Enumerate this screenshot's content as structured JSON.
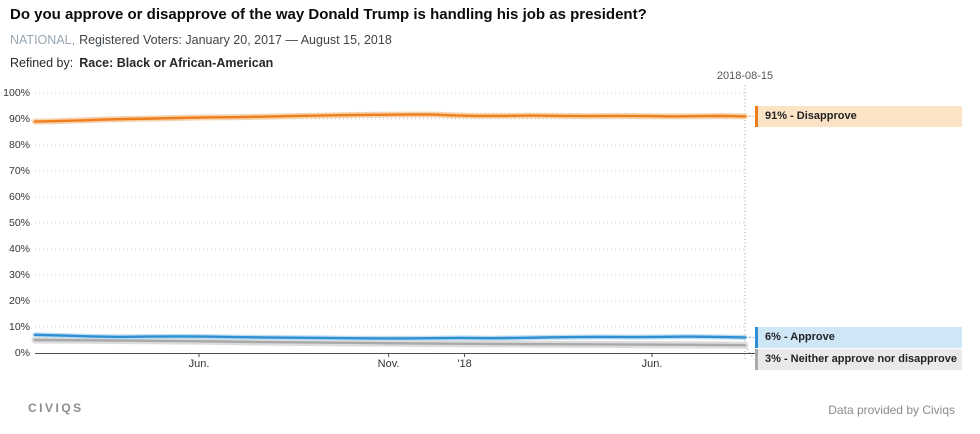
{
  "header": {
    "title": "Do you approve or disapprove of the way Donald Trump is handling his job as president?",
    "scope": "NATIONAL,",
    "subtitle": "Registered Voters: January 20, 2017 — August 15, 2018",
    "refined_label": "Refined by:",
    "refined_value": "Race: Black or African-American"
  },
  "chart_data": {
    "type": "line",
    "title": "Do you approve or disapprove of the way Donald Trump is handling his job as president?",
    "xlabel": "",
    "ylabel": "",
    "ylim": [
      0,
      100
    ],
    "grid": "dotted horizontal",
    "legend_position": "right-end-labels",
    "x_range": {
      "start": "January 20, 2017",
      "end": "August 15, 2018"
    },
    "cursor": {
      "label": "2018-08-15",
      "pos": 1.0
    },
    "y_ticks": [
      {
        "value": 0,
        "label": "0%"
      },
      {
        "value": 10,
        "label": "10%"
      },
      {
        "value": 20,
        "label": "20%"
      },
      {
        "value": 30,
        "label": "30%"
      },
      {
        "value": 40,
        "label": "40%"
      },
      {
        "value": 50,
        "label": "50%"
      },
      {
        "value": 60,
        "label": "60%"
      },
      {
        "value": 70,
        "label": "70%"
      },
      {
        "value": 80,
        "label": "80%"
      },
      {
        "value": 90,
        "label": "90%"
      },
      {
        "value": 100,
        "label": "100%"
      }
    ],
    "x_ticks": [
      {
        "pos": 0.231,
        "label": "Jun."
      },
      {
        "pos": 0.498,
        "label": "Nov."
      },
      {
        "pos": 0.605,
        "label": "'18"
      },
      {
        "pos": 0.869,
        "label": "Jun."
      }
    ],
    "series": [
      {
        "name": "Disapprove",
        "label": "91% - Disapprove",
        "end_value": 91,
        "color": "#ee7e1d",
        "band_color": "#f7d4af",
        "band_width": 6,
        "label_bg": "#fbe3c6",
        "points": [
          [
            0,
            89.0
          ],
          [
            0.03,
            89.2
          ],
          [
            0.07,
            89.5
          ],
          [
            0.1,
            89.8
          ],
          [
            0.13,
            90.0
          ],
          [
            0.17,
            90.2
          ],
          [
            0.2,
            90.4
          ],
          [
            0.24,
            90.6
          ],
          [
            0.28,
            90.7
          ],
          [
            0.32,
            90.9
          ],
          [
            0.36,
            91.1
          ],
          [
            0.4,
            91.3
          ],
          [
            0.44,
            91.5
          ],
          [
            0.48,
            91.6
          ],
          [
            0.52,
            91.7
          ],
          [
            0.56,
            91.7
          ],
          [
            0.59,
            91.4
          ],
          [
            0.62,
            91.2
          ],
          [
            0.66,
            91.2
          ],
          [
            0.7,
            91.3
          ],
          [
            0.74,
            91.2
          ],
          [
            0.78,
            91.1
          ],
          [
            0.82,
            91.2
          ],
          [
            0.86,
            91.1
          ],
          [
            0.9,
            91.0
          ],
          [
            0.94,
            91.1
          ],
          [
            0.97,
            91.2
          ],
          [
            1,
            91.0
          ]
        ]
      },
      {
        "name": "Approve",
        "label": "6% - Approve",
        "end_value": 6,
        "color": "#2e8fd2",
        "band_color": "#bcdcf2",
        "band_width": 5,
        "label_bg": "#cfe6f6",
        "points": [
          [
            0,
            7.0
          ],
          [
            0.04,
            6.7
          ],
          [
            0.08,
            6.4
          ],
          [
            0.12,
            6.2
          ],
          [
            0.16,
            6.3
          ],
          [
            0.2,
            6.4
          ],
          [
            0.24,
            6.3
          ],
          [
            0.28,
            6.1
          ],
          [
            0.32,
            6.0
          ],
          [
            0.36,
            5.9
          ],
          [
            0.4,
            5.8
          ],
          [
            0.44,
            5.7
          ],
          [
            0.48,
            5.6
          ],
          [
            0.52,
            5.6
          ],
          [
            0.56,
            5.7
          ],
          [
            0.6,
            5.8
          ],
          [
            0.64,
            5.7
          ],
          [
            0.68,
            5.8
          ],
          [
            0.72,
            6.0
          ],
          [
            0.76,
            6.1
          ],
          [
            0.8,
            6.2
          ],
          [
            0.84,
            6.1
          ],
          [
            0.88,
            6.2
          ],
          [
            0.92,
            6.3
          ],
          [
            0.96,
            6.2
          ],
          [
            1,
            6.0
          ]
        ]
      },
      {
        "name": "Neither approve nor disapprove",
        "label": "3% - Neither approve nor disapprove",
        "end_value": 3,
        "color": "#a9a9a9",
        "band_color": "#dcdcdc",
        "band_width": 7,
        "label_bg": "#e9e9e9",
        "points": [
          [
            0,
            5.0
          ],
          [
            0.08,
            4.9
          ],
          [
            0.16,
            4.7
          ],
          [
            0.24,
            4.5
          ],
          [
            0.32,
            4.2
          ],
          [
            0.4,
            4.0
          ],
          [
            0.48,
            3.8
          ],
          [
            0.56,
            3.6
          ],
          [
            0.64,
            3.5
          ],
          [
            0.72,
            3.4
          ],
          [
            0.8,
            3.3
          ],
          [
            0.88,
            3.2
          ],
          [
            0.96,
            3.1
          ],
          [
            1,
            3.0
          ]
        ]
      }
    ]
  },
  "footer": {
    "logo": "CIVIQS",
    "credit": "Data provided by Civiqs"
  }
}
